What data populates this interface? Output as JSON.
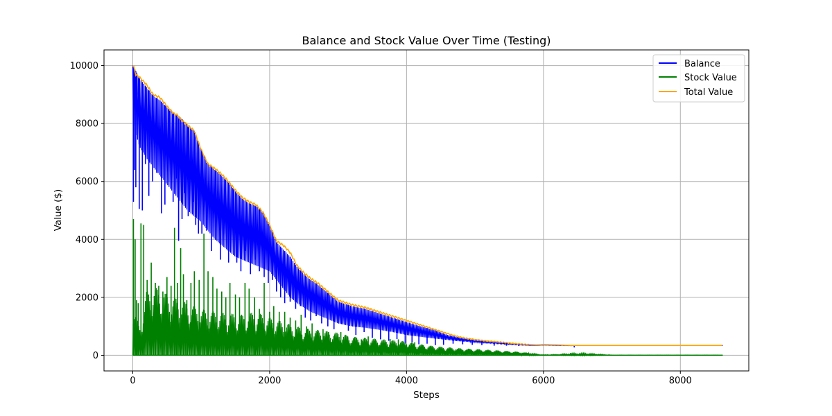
{
  "chart_data": {
    "type": "line",
    "title": "Balance and Stock Value Over Time (Testing)",
    "xlabel": "Steps",
    "ylabel": "Value ($)",
    "xlim": [
      -420,
      9000
    ],
    "ylim": [
      -540,
      10540
    ],
    "xticks": [
      0,
      2000,
      4000,
      6000,
      8000
    ],
    "yticks": [
      0,
      2000,
      4000,
      6000,
      8000,
      10000
    ],
    "grid": true,
    "legend_position": "top-right",
    "colors": {
      "Balance": "#0000ff",
      "Stock Value": "#008000",
      "Total Value": "#ffa500"
    },
    "series": [
      {
        "name": "Balance",
        "x": [
          0,
          100,
          200,
          300,
          400,
          500,
          600,
          700,
          800,
          900,
          1000,
          1100,
          1200,
          1300,
          1400,
          1500,
          1600,
          1700,
          1800,
          1900,
          2000,
          2100,
          2200,
          2300,
          2400,
          2500,
          2600,
          2700,
          2800,
          2900,
          3000,
          3200,
          3400,
          3600,
          3800,
          4000,
          4200,
          4400,
          4600,
          4700,
          4800,
          5000,
          5200,
          5400,
          5600,
          5800,
          5900,
          6000,
          6200,
          6400,
          6600,
          7000,
          8000,
          8620
        ],
        "upper": [
          10000,
          9550,
          9250,
          8950,
          8800,
          8550,
          8350,
          8200,
          7950,
          7750,
          7100,
          6600,
          6400,
          6200,
          5950,
          5650,
          5400,
          5250,
          5150,
          4950,
          4500,
          3900,
          3650,
          3400,
          3050,
          2800,
          2600,
          2450,
          2250,
          2050,
          1850,
          1700,
          1600,
          1450,
          1300,
          1150,
          1000,
          880,
          700,
          650,
          600,
          520,
          470,
          430,
          390,
          360,
          350,
          360,
          350,
          340,
          340,
          340,
          340,
          340
        ],
        "lower": [
          8000,
          7200,
          6800,
          6500,
          6200,
          5900,
          5600,
          5300,
          5000,
          4800,
          4600,
          4300,
          4000,
          3800,
          3600,
          3400,
          3300,
          3200,
          3100,
          3000,
          2900,
          2600,
          2300,
          2000,
          1800,
          1650,
          1500,
          1400,
          1300,
          1200,
          1100,
          1000,
          950,
          880,
          800,
          700,
          640,
          580,
          530,
          500,
          480,
          450,
          420,
          390,
          360,
          340,
          340,
          350,
          340,
          330,
          340,
          340,
          340,
          340
        ]
      },
      {
        "name": "Stock Value",
        "x": [
          0,
          100,
          200,
          300,
          400,
          500,
          600,
          700,
          800,
          900,
          1000,
          1200,
          1400,
          1600,
          1800,
          2000,
          2200,
          2400,
          2600,
          2800,
          3000,
          3200,
          3400,
          3600,
          3800,
          4000,
          4200,
          4400,
          4600,
          4800,
          5000,
          5200,
          5400,
          5600,
          5800,
          5900,
          6000,
          6200,
          6400,
          6600,
          7000,
          8000,
          8620
        ],
        "envelope": [
          1800,
          950,
          2200,
          2350,
          2300,
          2100,
          2000,
          1900,
          1800,
          1700,
          1600,
          1500,
          1450,
          1400,
          1500,
          1300,
          1150,
          1000,
          900,
          850,
          780,
          650,
          600,
          560,
          520,
          480,
          380,
          320,
          280,
          240,
          220,
          190,
          160,
          130,
          80,
          40,
          20,
          30,
          60,
          70,
          10,
          10,
          10
        ]
      },
      {
        "name": "Total Value",
        "x": [
          0,
          20,
          40,
          100,
          200,
          300,
          400,
          500,
          600,
          650,
          700,
          800,
          900,
          1000,
          1100,
          1200,
          1300,
          1400,
          1500,
          1600,
          1700,
          1800,
          1900,
          2000,
          2100,
          2200,
          2300,
          2400,
          2500,
          2600,
          2700,
          2800,
          2900,
          3000,
          3200,
          3400,
          3600,
          3800,
          4000,
          4200,
          4400,
          4600,
          4700,
          4800,
          5000,
          5200,
          5400,
          5600,
          5800,
          5900,
          6000,
          6200,
          6400,
          6600,
          7000,
          8000,
          8620
        ],
        "values": [
          10000,
          9950,
          9700,
          9600,
          9350,
          9000,
          8900,
          8600,
          8350,
          8300,
          8150,
          7950,
          7750,
          7100,
          6600,
          6450,
          6250,
          6000,
          5700,
          5450,
          5300,
          5200,
          4950,
          4500,
          3950,
          3800,
          3550,
          3100,
          2850,
          2650,
          2500,
          2300,
          2100,
          1900,
          1750,
          1650,
          1500,
          1350,
          1200,
          1050,
          900,
          750,
          680,
          620,
          540,
          490,
          450,
          400,
          370,
          360,
          370,
          360,
          340,
          340,
          340,
          340,
          340
        ]
      }
    ],
    "spikes": {
      "Balance": [
        [
          10,
          5300
        ],
        [
          30,
          6400
        ],
        [
          45,
          5800
        ],
        [
          60,
          9000
        ],
        [
          95,
          5050
        ],
        [
          140,
          5000
        ],
        [
          185,
          6600
        ],
        [
          235,
          5500
        ],
        [
          290,
          6000
        ],
        [
          350,
          6300
        ],
        [
          420,
          4900
        ],
        [
          470,
          5200
        ],
        [
          530,
          6000
        ],
        [
          590,
          5300
        ],
        [
          640,
          6100
        ],
        [
          670,
          3950
        ],
        [
          720,
          4700
        ],
        [
          760,
          5600
        ],
        [
          810,
          4800
        ],
        [
          880,
          5300
        ],
        [
          920,
          4500
        ],
        [
          960,
          4200
        ],
        [
          1010,
          4200
        ],
        [
          1080,
          4300
        ],
        [
          1150,
          3600
        ],
        [
          1210,
          4000
        ],
        [
          1280,
          3300
        ],
        [
          1350,
          4200
        ],
        [
          1400,
          3200
        ],
        [
          1470,
          4500
        ],
        [
          1520,
          3200
        ],
        [
          1580,
          2900
        ],
        [
          1640,
          3600
        ],
        [
          1720,
          2800
        ],
        [
          1790,
          3300
        ],
        [
          1850,
          2900
        ],
        [
          1920,
          2700
        ],
        [
          1980,
          2500
        ],
        [
          2040,
          2600
        ],
        [
          2100,
          2200
        ],
        [
          2160,
          2000
        ],
        [
          2220,
          1800
        ],
        [
          2300,
          1850
        ],
        [
          2380,
          1600
        ],
        [
          2450,
          1700
        ],
        [
          2520,
          1300
        ],
        [
          2600,
          1200
        ],
        [
          2680,
          1350
        ],
        [
          2760,
          1100
        ],
        [
          2850,
          1000
        ],
        [
          2940,
          900
        ],
        [
          3050,
          1100
        ],
        [
          3150,
          850
        ],
        [
          3260,
          700
        ],
        [
          3380,
          800
        ],
        [
          3500,
          600
        ],
        [
          3620,
          550
        ],
        [
          3740,
          500
        ],
        [
          3860,
          560
        ],
        [
          3980,
          400
        ],
        [
          4080,
          450
        ],
        [
          4180,
          380
        ],
        [
          4300,
          400
        ],
        [
          4420,
          350
        ],
        [
          4540,
          360
        ],
        [
          4680,
          400
        ],
        [
          4820,
          380
        ],
        [
          4960,
          360
        ],
        [
          5100,
          350
        ],
        [
          5280,
          330
        ],
        [
          5460,
          330
        ],
        [
          5640,
          320
        ],
        [
          6450,
          270
        ]
      ],
      "Stock Value": [
        [
          10,
          4700
        ],
        [
          35,
          4000
        ],
        [
          55,
          1900
        ],
        [
          80,
          1800
        ],
        [
          120,
          4550
        ],
        [
          160,
          4500
        ],
        [
          210,
          2600
        ],
        [
          270,
          3200
        ],
        [
          330,
          2500
        ],
        [
          380,
          2400
        ],
        [
          440,
          2200
        ],
        [
          500,
          2700
        ],
        [
          560,
          2400
        ],
        [
          610,
          4400
        ],
        [
          655,
          2500
        ],
        [
          700,
          3700
        ],
        [
          740,
          2800
        ],
        [
          790,
          1900
        ],
        [
          850,
          2500
        ],
        [
          900,
          2900
        ],
        [
          970,
          2600
        ],
        [
          1040,
          4200
        ],
        [
          1100,
          2900
        ],
        [
          1170,
          2700
        ],
        [
          1230,
          2300
        ],
        [
          1300,
          2200
        ],
        [
          1360,
          2000
        ],
        [
          1420,
          2500
        ],
        [
          1500,
          2100
        ],
        [
          1560,
          2000
        ],
        [
          1640,
          2500
        ],
        [
          1700,
          2300
        ],
        [
          1780,
          2000
        ],
        [
          1850,
          1600
        ],
        [
          1920,
          2500
        ],
        [
          2000,
          1500
        ],
        [
          2060,
          1700
        ],
        [
          2140,
          1500
        ],
        [
          2220,
          1500
        ],
        [
          2300,
          1300
        ],
        [
          2380,
          1200
        ],
        [
          2460,
          1400
        ],
        [
          2540,
          1000
        ],
        [
          2620,
          1100
        ],
        [
          2700,
          800
        ],
        [
          2780,
          900
        ],
        [
          2860,
          800
        ],
        [
          2950,
          700
        ],
        [
          3040,
          800
        ],
        [
          3140,
          650
        ],
        [
          3240,
          600
        ],
        [
          3340,
          550
        ],
        [
          3440,
          650
        ],
        [
          3540,
          500
        ],
        [
          3640,
          450
        ],
        [
          3760,
          560
        ],
        [
          3880,
          550
        ],
        [
          4000,
          380
        ],
        [
          4120,
          450
        ],
        [
          4240,
          350
        ],
        [
          4360,
          300
        ],
        [
          4480,
          250
        ],
        [
          4600,
          230
        ],
        [
          4720,
          200
        ],
        [
          4860,
          170
        ],
        [
          5000,
          150
        ],
        [
          5150,
          130
        ],
        [
          5300,
          110
        ],
        [
          5500,
          100
        ],
        [
          5700,
          90
        ],
        [
          6400,
          80
        ]
      ]
    }
  }
}
